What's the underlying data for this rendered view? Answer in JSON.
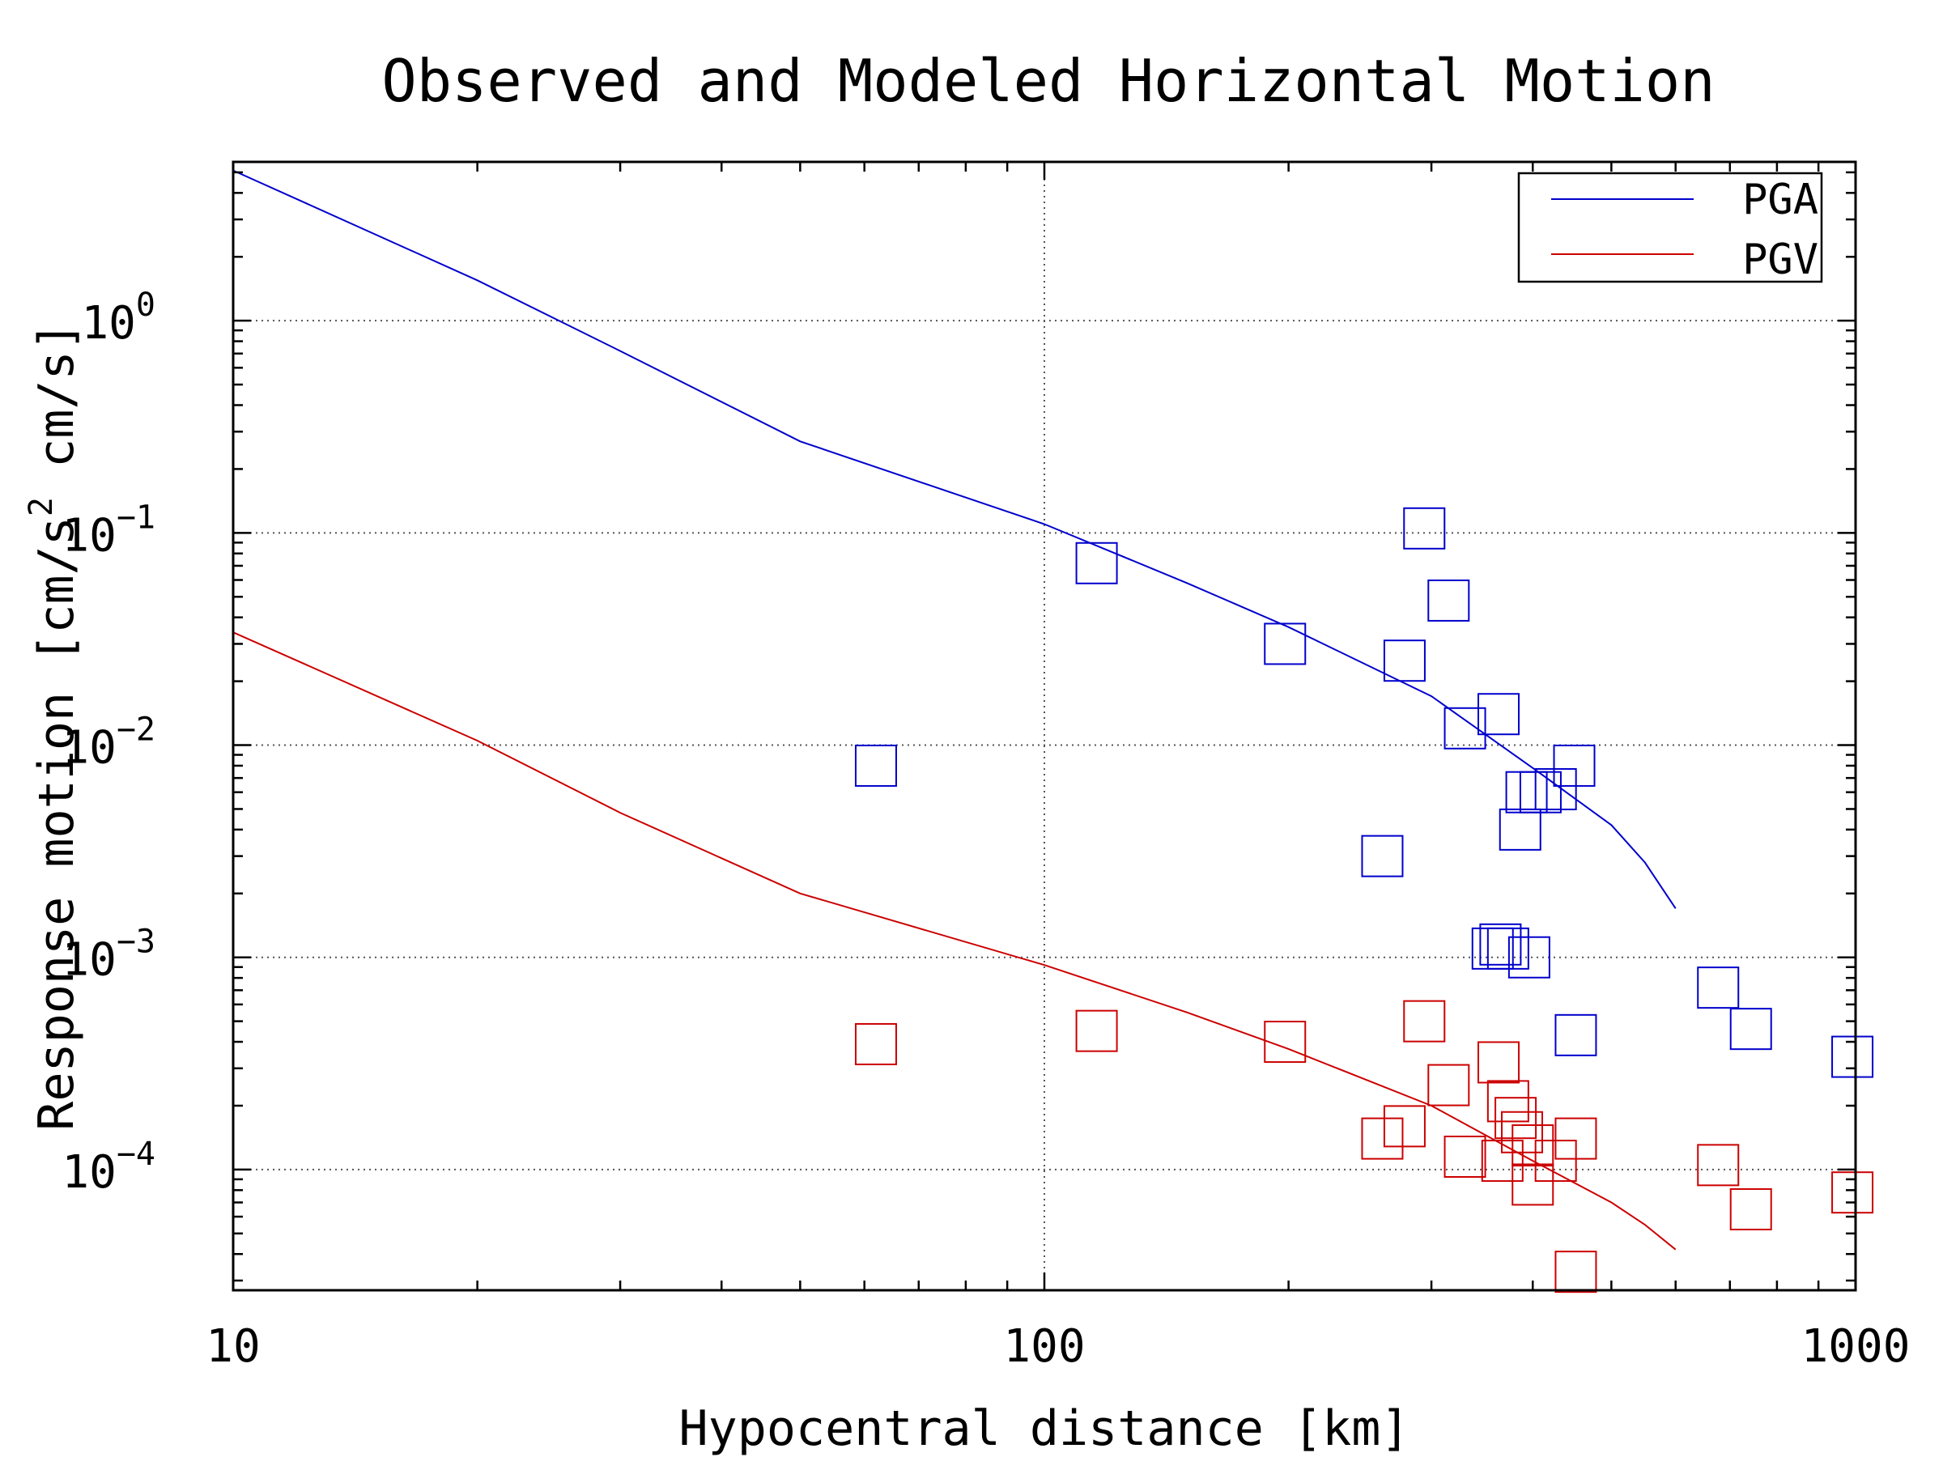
{
  "chart_data": {
    "type": "scatter",
    "title": "Observed and Modeled Horizontal Motion",
    "xlabel": "Hypocentral distance [km]",
    "ylabel": {
      "prefix": "Response motion  [cm/s",
      "sup": "2",
      "suffix": "  cm/s]"
    },
    "x_scale": "log",
    "y_scale": "log",
    "xlim": [
      10,
      1000
    ],
    "ylim": [
      2.7e-05,
      5.6
    ],
    "grid": true,
    "legend_position": "top-right",
    "x_ticks": [
      {
        "value": 10,
        "label": "10"
      },
      {
        "value": 100,
        "label": "100"
      },
      {
        "value": 1000,
        "label": "1000"
      }
    ],
    "y_ticks": [
      {
        "value": 1,
        "base": "10",
        "exp": "0"
      },
      {
        "value": 0.1,
        "base": "10",
        "exp": "−1"
      },
      {
        "value": 0.01,
        "base": "10",
        "exp": "−2"
      },
      {
        "value": 0.001,
        "base": "10",
        "exp": "−3"
      },
      {
        "value": 0.0001,
        "base": "10",
        "exp": "−4"
      }
    ],
    "series": [
      {
        "name": "PGA",
        "color": "#0000cc",
        "model_line": [
          [
            10,
            5.1
          ],
          [
            20,
            1.55
          ],
          [
            30,
            0.72
          ],
          [
            50,
            0.27
          ],
          [
            100,
            0.11
          ],
          [
            150,
            0.058
          ],
          [
            200,
            0.036
          ],
          [
            300,
            0.017
          ],
          [
            400,
            0.0078
          ],
          [
            500,
            0.0042
          ],
          [
            550,
            0.0028
          ],
          [
            600,
            0.0017
          ]
        ],
        "observed": [
          [
            62,
            0.008
          ],
          [
            116,
            0.072
          ],
          [
            198,
            0.03
          ],
          [
            261,
            0.003
          ],
          [
            278,
            0.025
          ],
          [
            294,
            0.105
          ],
          [
            315,
            0.048
          ],
          [
            330,
            0.012
          ],
          [
            363,
            0.014
          ],
          [
            386,
            0.004
          ],
          [
            393,
            0.006
          ],
          [
            409,
            0.006
          ],
          [
            427,
            0.0062
          ],
          [
            450,
            0.008
          ],
          [
            357,
            0.0011
          ],
          [
            365,
            0.00115
          ],
          [
            373,
            0.0011
          ],
          [
            396,
            0.001
          ],
          [
            452,
            0.00043
          ],
          [
            677,
            0.00072
          ],
          [
            743,
            0.00046
          ],
          [
            991,
            0.00034
          ]
        ]
      },
      {
        "name": "PGV",
        "color": "#cc0000",
        "model_line": [
          [
            10,
            0.034
          ],
          [
            20,
            0.0105
          ],
          [
            30,
            0.0048
          ],
          [
            50,
            0.002
          ],
          [
            100,
            0.00092
          ],
          [
            150,
            0.00055
          ],
          [
            200,
            0.00037
          ],
          [
            300,
            0.0002
          ],
          [
            400,
            0.00011
          ],
          [
            500,
            7e-05
          ],
          [
            550,
            5.5e-05
          ],
          [
            600,
            4.2e-05
          ]
        ],
        "observed": [
          [
            62,
            0.00039
          ],
          [
            116,
            0.00045
          ],
          [
            198,
            0.0004
          ],
          [
            261,
            0.00014
          ],
          [
            278,
            0.00016
          ],
          [
            294,
            0.0005
          ],
          [
            315,
            0.00025
          ],
          [
            330,
            0.000115
          ],
          [
            363,
            0.00032
          ],
          [
            367,
            0.00011
          ],
          [
            373,
            0.00021
          ],
          [
            381,
            0.000175
          ],
          [
            388,
            0.00015
          ],
          [
            400,
            0.00013
          ],
          [
            400,
            8.5e-05
          ],
          [
            427,
            0.00011
          ],
          [
            452,
            0.00014
          ],
          [
            452,
            3.3e-05
          ],
          [
            677,
            0.000105
          ],
          [
            743,
            6.5e-05
          ],
          [
            991,
            7.8e-05
          ]
        ]
      }
    ]
  }
}
